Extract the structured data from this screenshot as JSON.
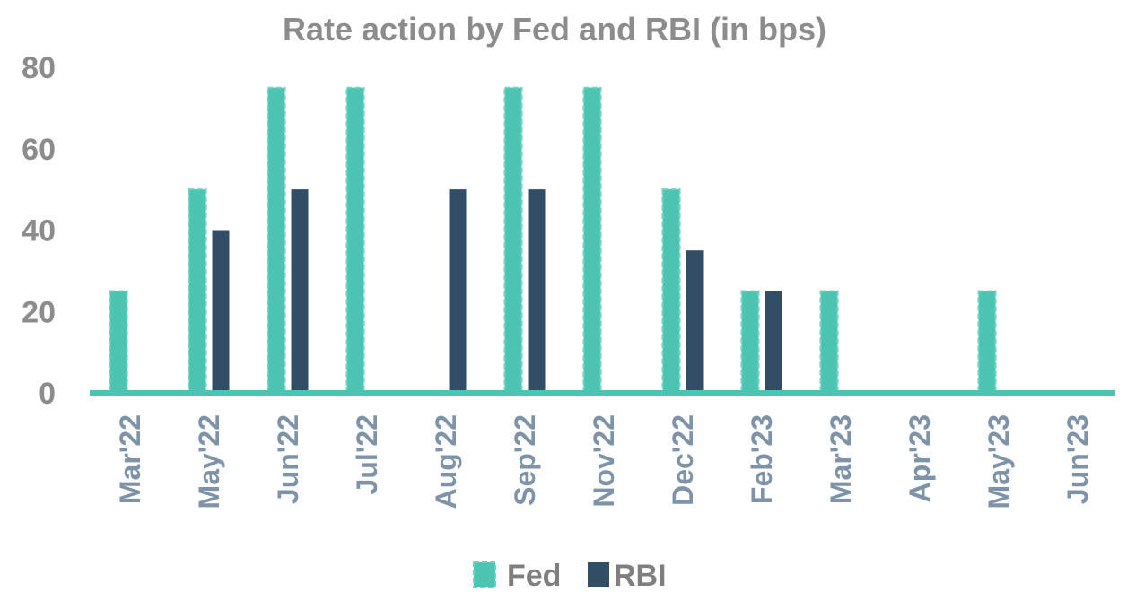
{
  "chart_data": {
    "type": "bar",
    "title": "Rate action by Fed and RBI (in bps)",
    "xlabel": "",
    "ylabel": "",
    "ylim": [
      0,
      80
    ],
    "yticks": [
      "0",
      "20",
      "40",
      "60",
      "80"
    ],
    "categories": [
      "Mar'22",
      "May'22",
      "Jun'22",
      "Jul'22",
      "Aug'22",
      "Sep'22",
      "Nov'22",
      "Dec'22",
      "Feb'23",
      "Mar'23",
      "Apr'23",
      "May'23",
      "Jun'23"
    ],
    "series": [
      {
        "name": "Fed",
        "color": "#4bc4b1",
        "values": [
          25,
          50,
          75,
          75,
          0,
          75,
          75,
          50,
          25,
          25,
          0,
          25,
          0
        ]
      },
      {
        "name": "RBI",
        "color": "#324d66",
        "values": [
          0,
          40,
          50,
          0,
          50,
          50,
          0,
          35,
          25,
          0,
          0,
          0,
          0
        ]
      }
    ],
    "grid": false,
    "legend_position": "bottom-center",
    "axis_color": "#4bc4b1"
  }
}
